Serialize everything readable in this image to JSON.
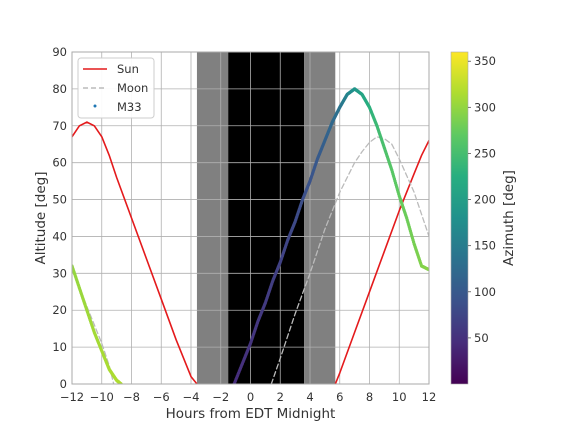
{
  "chart_data": {
    "type": "line",
    "xlabel": "Hours from EDT Midnight",
    "ylabel": "Altitude [deg]",
    "xlim": [
      -12,
      12
    ],
    "ylim": [
      0,
      90
    ],
    "xticks": [
      -12,
      -10,
      -8,
      -6,
      -4,
      -2,
      0,
      2,
      4,
      6,
      8,
      10,
      12
    ],
    "yticks": [
      0,
      10,
      20,
      30,
      40,
      50,
      60,
      70,
      80,
      90
    ],
    "xtick_labels": [
      "−12",
      "−10",
      "−8",
      "−6",
      "−4",
      "−2",
      "0",
      "2",
      "4",
      "6",
      "8",
      "10",
      "12"
    ],
    "ytick_labels": [
      "0",
      "10",
      "20",
      "30",
      "40",
      "50",
      "60",
      "70",
      "80",
      "90"
    ],
    "grid": true,
    "legend_position": "top-left",
    "twilight_bands": [
      {
        "from": -3.6,
        "to": -1.5,
        "shade": "gray"
      },
      {
        "from": -1.5,
        "to": 3.6,
        "shade": "black"
      },
      {
        "from": 3.6,
        "to": 5.7,
        "shade": "gray"
      }
    ],
    "series": [
      {
        "name": "Sun",
        "style": "solid",
        "color": "#e41a1c",
        "segments": [
          {
            "x": [
              -12,
              -11.5,
              -11,
              -10.5,
              -10,
              -9.5,
              -9,
              -8,
              -7,
              -6,
              -5,
              -4,
              -3.6
            ],
            "y": [
              67,
              70,
              71,
              70,
              67,
              62,
              56,
              45,
              34,
              23,
              12,
              2,
              0
            ]
          },
          {
            "x": [
              5.7,
              6,
              7,
              8,
              9,
              10,
              11,
              11.5,
              12
            ],
            "y": [
              0,
              3,
              14,
              25,
              36,
              47,
              57,
              62,
              66
            ]
          }
        ]
      },
      {
        "name": "Moon",
        "style": "dashed",
        "color": "#bbbbbb",
        "segments": [
          {
            "x": [
              -12,
              -11,
              -10,
              -9.5,
              -9.2
            ],
            "y": [
              31,
              21,
              11,
              5,
              0
            ]
          },
          {
            "x": [
              1.4,
              2,
              3,
              4,
              5,
              6,
              7,
              7.5,
              8,
              8.5,
              9,
              9.5,
              10,
              11,
              12
            ],
            "y": [
              0,
              7,
              19,
              30,
              42,
              52,
              60,
              63,
              65.5,
              67,
              66.5,
              65,
              61,
              52,
              40
            ]
          }
        ]
      },
      {
        "name": "M33",
        "style": "points",
        "color_by": "azimuth",
        "segments": [
          {
            "x": [
              -12,
              -11.5,
              -11,
              -10.5,
              -10,
              -9.5,
              -9,
              -8.7
            ],
            "y": [
              32,
              26,
              20,
              14,
              9,
              4,
              1,
              0
            ],
            "azimuth": [
              300,
              303,
              306,
              309,
              311,
              313,
              315,
              316
            ]
          },
          {
            "x": [
              -1.1,
              -0.5,
              0,
              0.5,
              1,
              1.5,
              2,
              2.5,
              3,
              3.5,
              4,
              4.5,
              5,
              5.5,
              6,
              6.5,
              7,
              7.5,
              8,
              8.5,
              9,
              9.5,
              10,
              10.5,
              11,
              11.5,
              12
            ],
            "y": [
              0,
              6,
              11,
              17,
              22,
              28,
              33,
              39,
              44,
              50,
              55,
              61,
              66,
              71,
              75,
              78.5,
              80,
              78.5,
              75,
              70,
              64,
              58,
              51,
              45,
              38,
              32,
              31
            ],
            "azimuth": [
              45,
              50,
              54,
              58,
              62,
              66,
              70,
              75,
              80,
              86,
              92,
              100,
              110,
              122,
              138,
              160,
              185,
              208,
              228,
              243,
              255,
              264,
              272,
              278,
              284,
              290,
              294
            ]
          }
        ]
      }
    ],
    "colorbar": {
      "label": "Azimuth [deg]",
      "colormap": "viridis",
      "range": [
        0,
        360
      ],
      "ticks": [
        50,
        100,
        150,
        200,
        250,
        300,
        350
      ],
      "tick_labels": [
        "50",
        "100",
        "150",
        "200",
        "250",
        "300",
        "350"
      ]
    }
  }
}
